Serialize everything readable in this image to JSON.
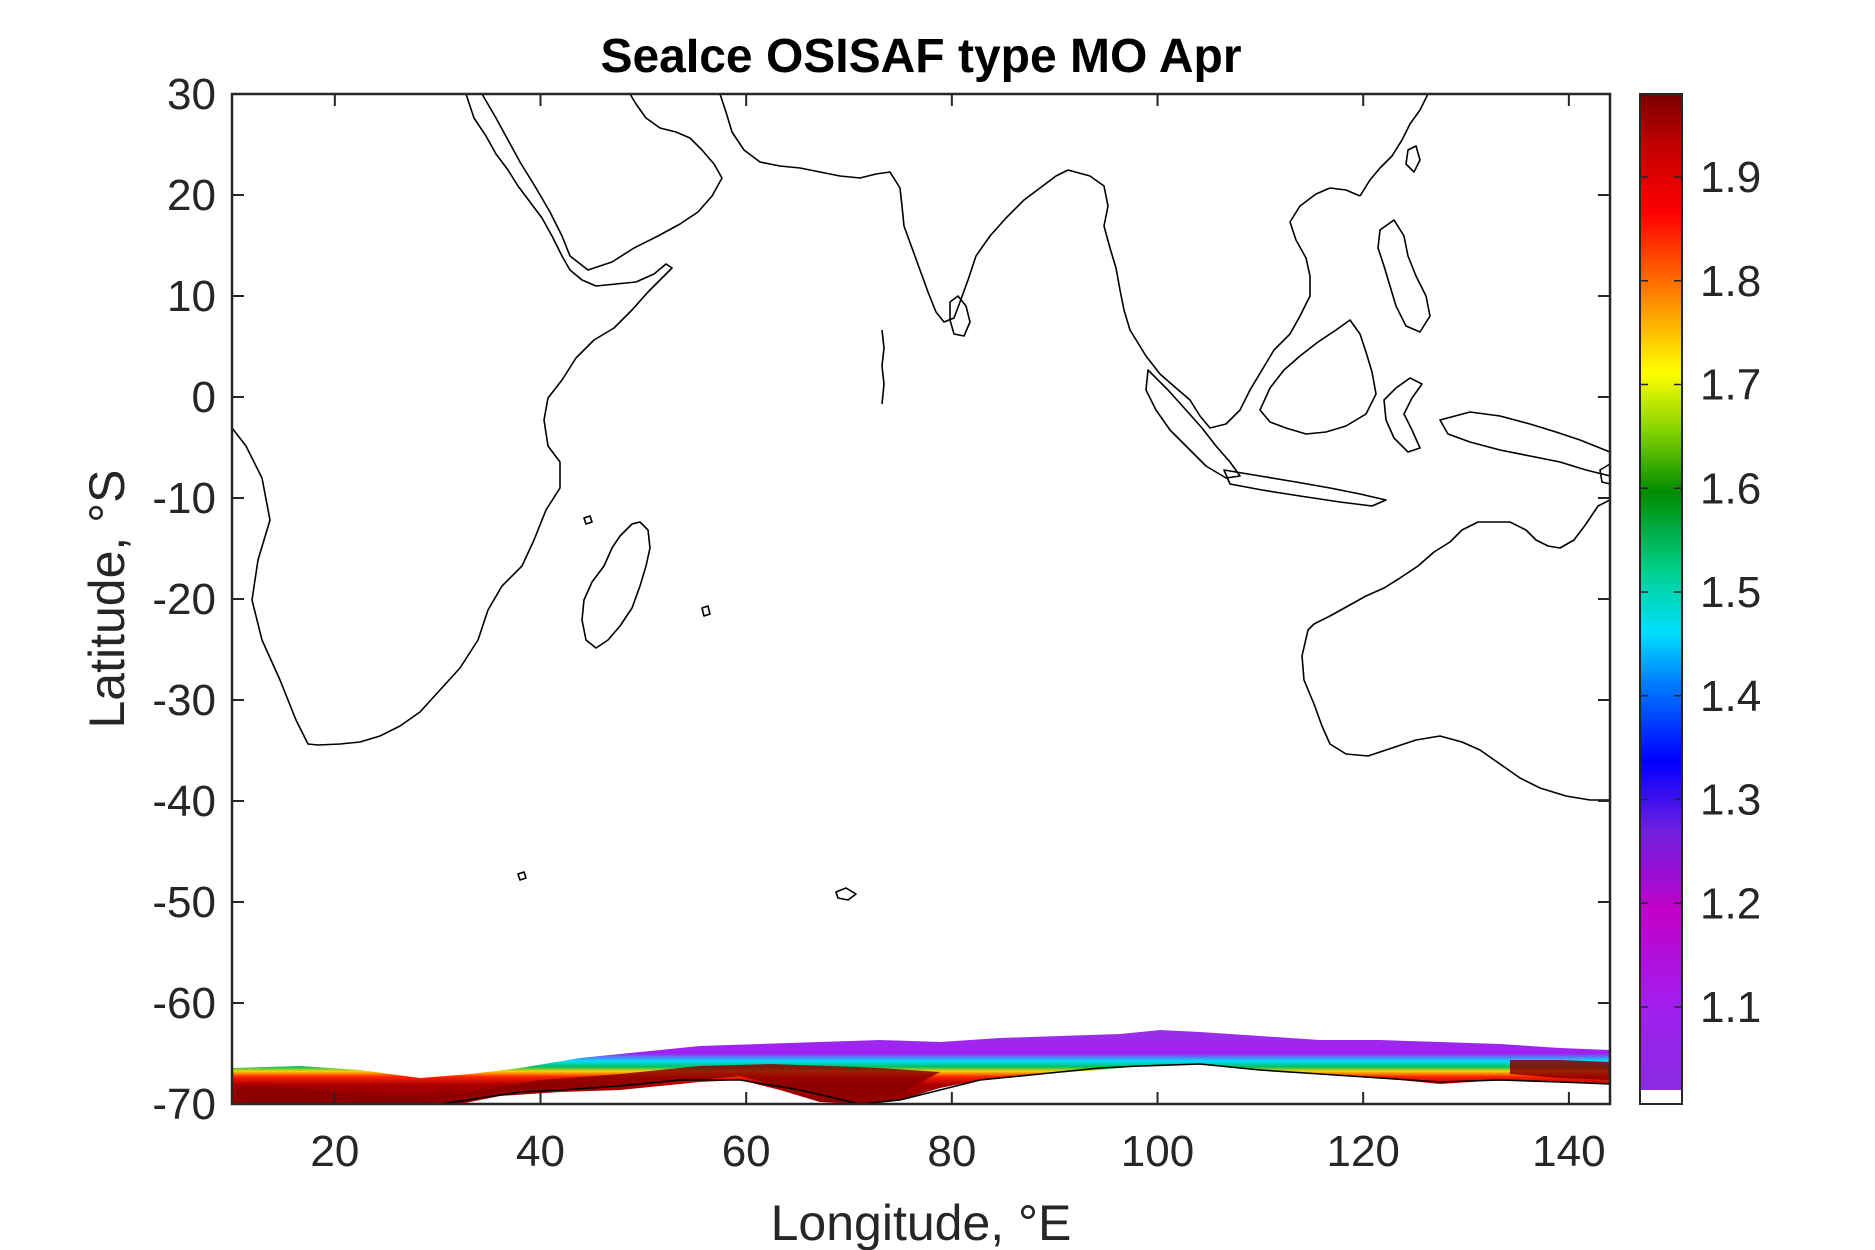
{
  "title": "SeaIce OSISAF type MO Apr",
  "xlabel": "Longitude, °E",
  "ylabel": "Latitude, °S",
  "x_ticks": [
    "20",
    "40",
    "60",
    "80",
    "100",
    "120",
    "140"
  ],
  "y_ticks": [
    "30",
    "20",
    "10",
    "0",
    "-10",
    "-20",
    "-30",
    "-40",
    "-50",
    "-60",
    "-70"
  ],
  "colorbar_ticks": [
    "1.1",
    "1.2",
    "1.3",
    "1.4",
    "1.5",
    "1.6",
    "1.7",
    "1.8",
    "1.9"
  ],
  "chart_data": {
    "type": "heatmap",
    "title": "SeaIce OSISAF type MO Apr",
    "xlabel": "Longitude, °E",
    "ylabel": "Latitude, °S",
    "xlim": [
      10,
      144
    ],
    "ylim": [
      -70,
      30
    ],
    "x_ticks": [
      20,
      40,
      60,
      80,
      100,
      120,
      140
    ],
    "y_ticks": [
      30,
      20,
      10,
      0,
      -10,
      -20,
      -30,
      -40,
      -50,
      -60,
      -70
    ],
    "colorbar": {
      "range": [
        1.02,
        1.98
      ],
      "ticks": [
        1.1,
        1.2,
        1.3,
        1.4,
        1.5,
        1.6,
        1.7,
        1.8,
        1.9
      ],
      "colormap": "purple-blue-cyan-green-yellow-red-darkred",
      "placement": "right"
    },
    "grid": false,
    "coastlines": true
  }
}
